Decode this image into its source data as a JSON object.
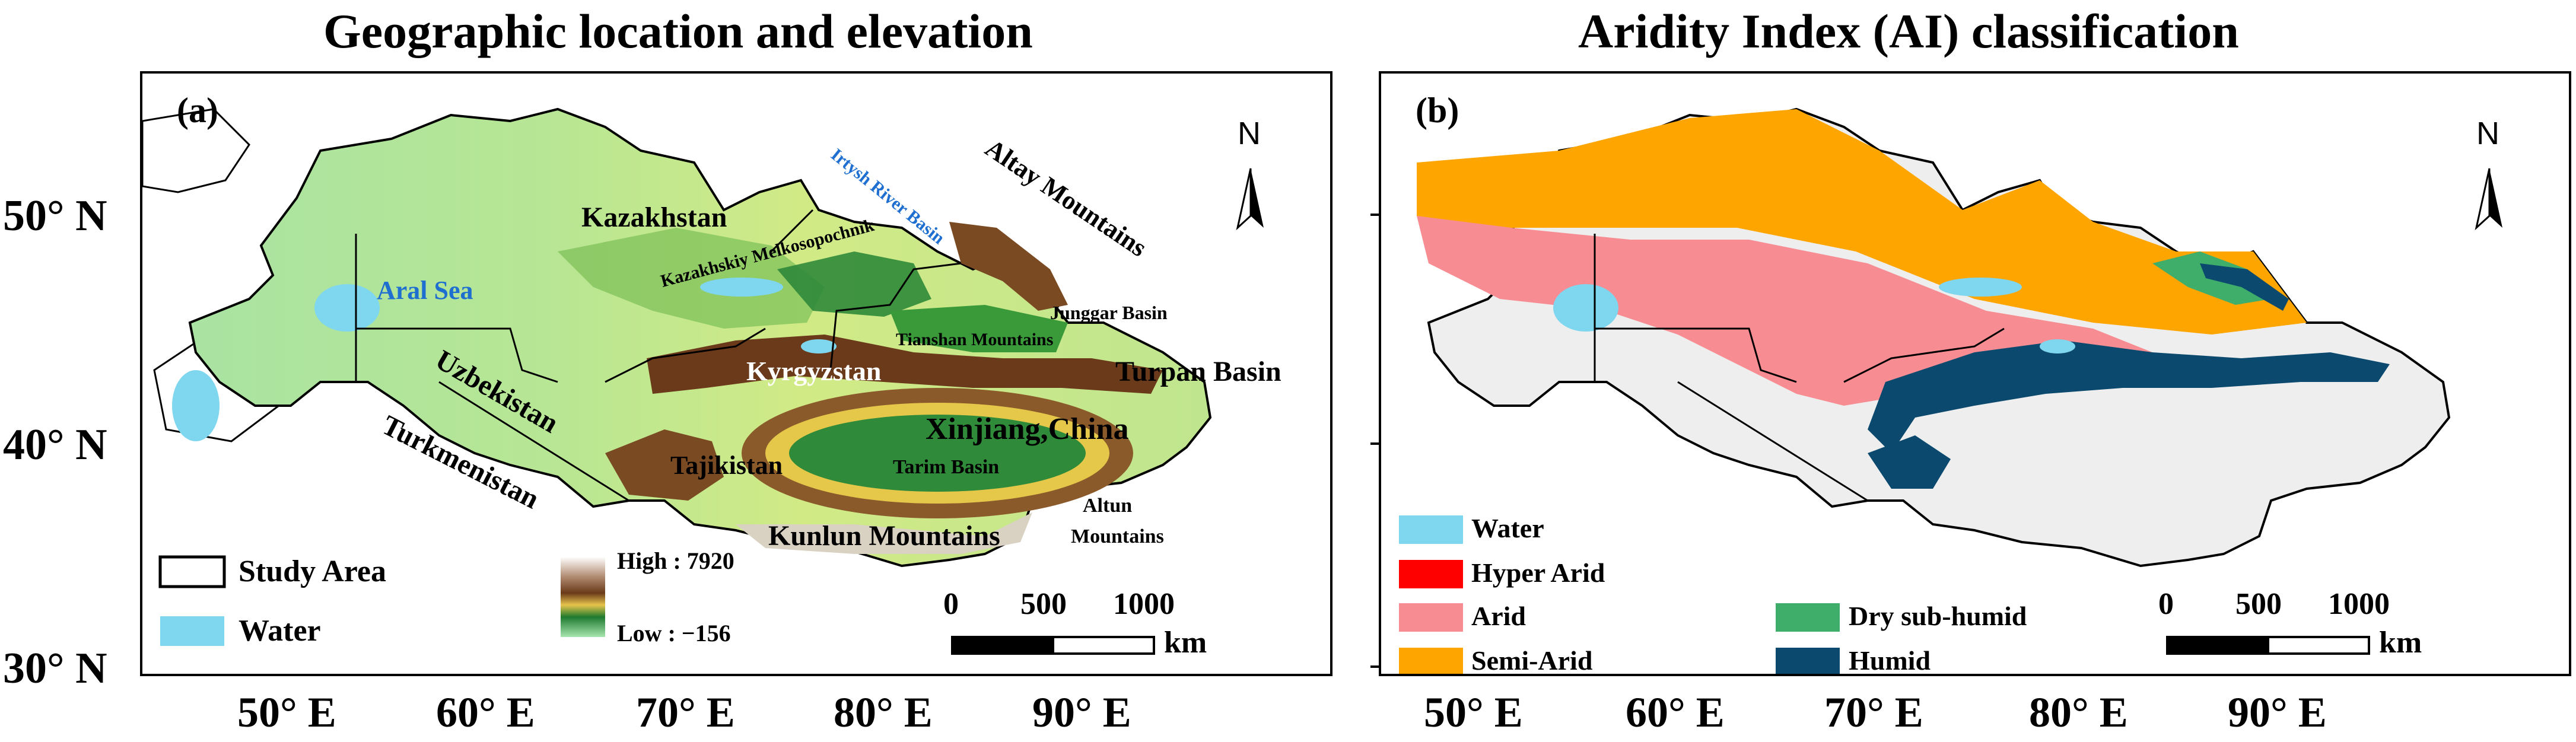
{
  "panels": [
    {
      "title": "Geographic location and elevation",
      "tag": "(a)",
      "north": "N",
      "labels": {
        "kazakhstan": "Kazakhstan",
        "aral_sea": "Aral Sea",
        "irtysh": "Irtysh River Basin",
        "altay": "Altay Mountains",
        "melkosopochnik": "Kazakhskiy Melkosopochnik",
        "junggar": "Junggar Basin",
        "tianshan": "Tianshan Mountains",
        "turpan": "Turpan Basin",
        "kyrgyzstan": "Kyrgyzstan",
        "uzbekistan": "Uzbekistan",
        "turkmenistan": "Turkmenistan",
        "xinjiang": "Xinjiang,China",
        "tajikistan": "Tajikistan",
        "tarim": "Tarim Basin",
        "altun_1": "Altun",
        "altun_2": "Mountains",
        "kunlun": "Kunlun Mountains"
      },
      "legend": {
        "study_area": "Study Area",
        "water": "Water",
        "high": "High : 7920",
        "low": "Low : −156"
      },
      "scale": {
        "t0": "0",
        "t1": "500",
        "t2": "1000",
        "unit": "km"
      }
    },
    {
      "title": "Aridity Index (AI) classification",
      "tag": "(b)",
      "north": "N",
      "legend": {
        "water": "Water",
        "hyper_arid": "Hyper Arid",
        "arid": "Arid",
        "semi_arid": "Semi-Arid",
        "dry_sub_humid": "Dry sub-humid",
        "humid": "Humid"
      },
      "scale": {
        "t0": "0",
        "t1": "500",
        "t2": "1000",
        "unit": "km"
      }
    }
  ],
  "axes": {
    "lat": [
      "50° N",
      "40° N",
      "30° N"
    ],
    "lon": [
      "50° E",
      "60° E",
      "70° E",
      "80° E",
      "90° E"
    ]
  },
  "colors": {
    "water": "#7fd6ef",
    "lowland": "#a9e3a2",
    "plain": "#c9e88b",
    "forest": "#2f8a3a",
    "mountain": "#8b5a2b",
    "snow": "#f2f2f2",
    "hyper_arid": "#ff0000",
    "arid": "#f78c92",
    "semi_arid": "#ffa500",
    "dry_sub_humid": "#3fae6a",
    "humid": "#0b4a6e",
    "label_blue": "#1f6fd1"
  }
}
